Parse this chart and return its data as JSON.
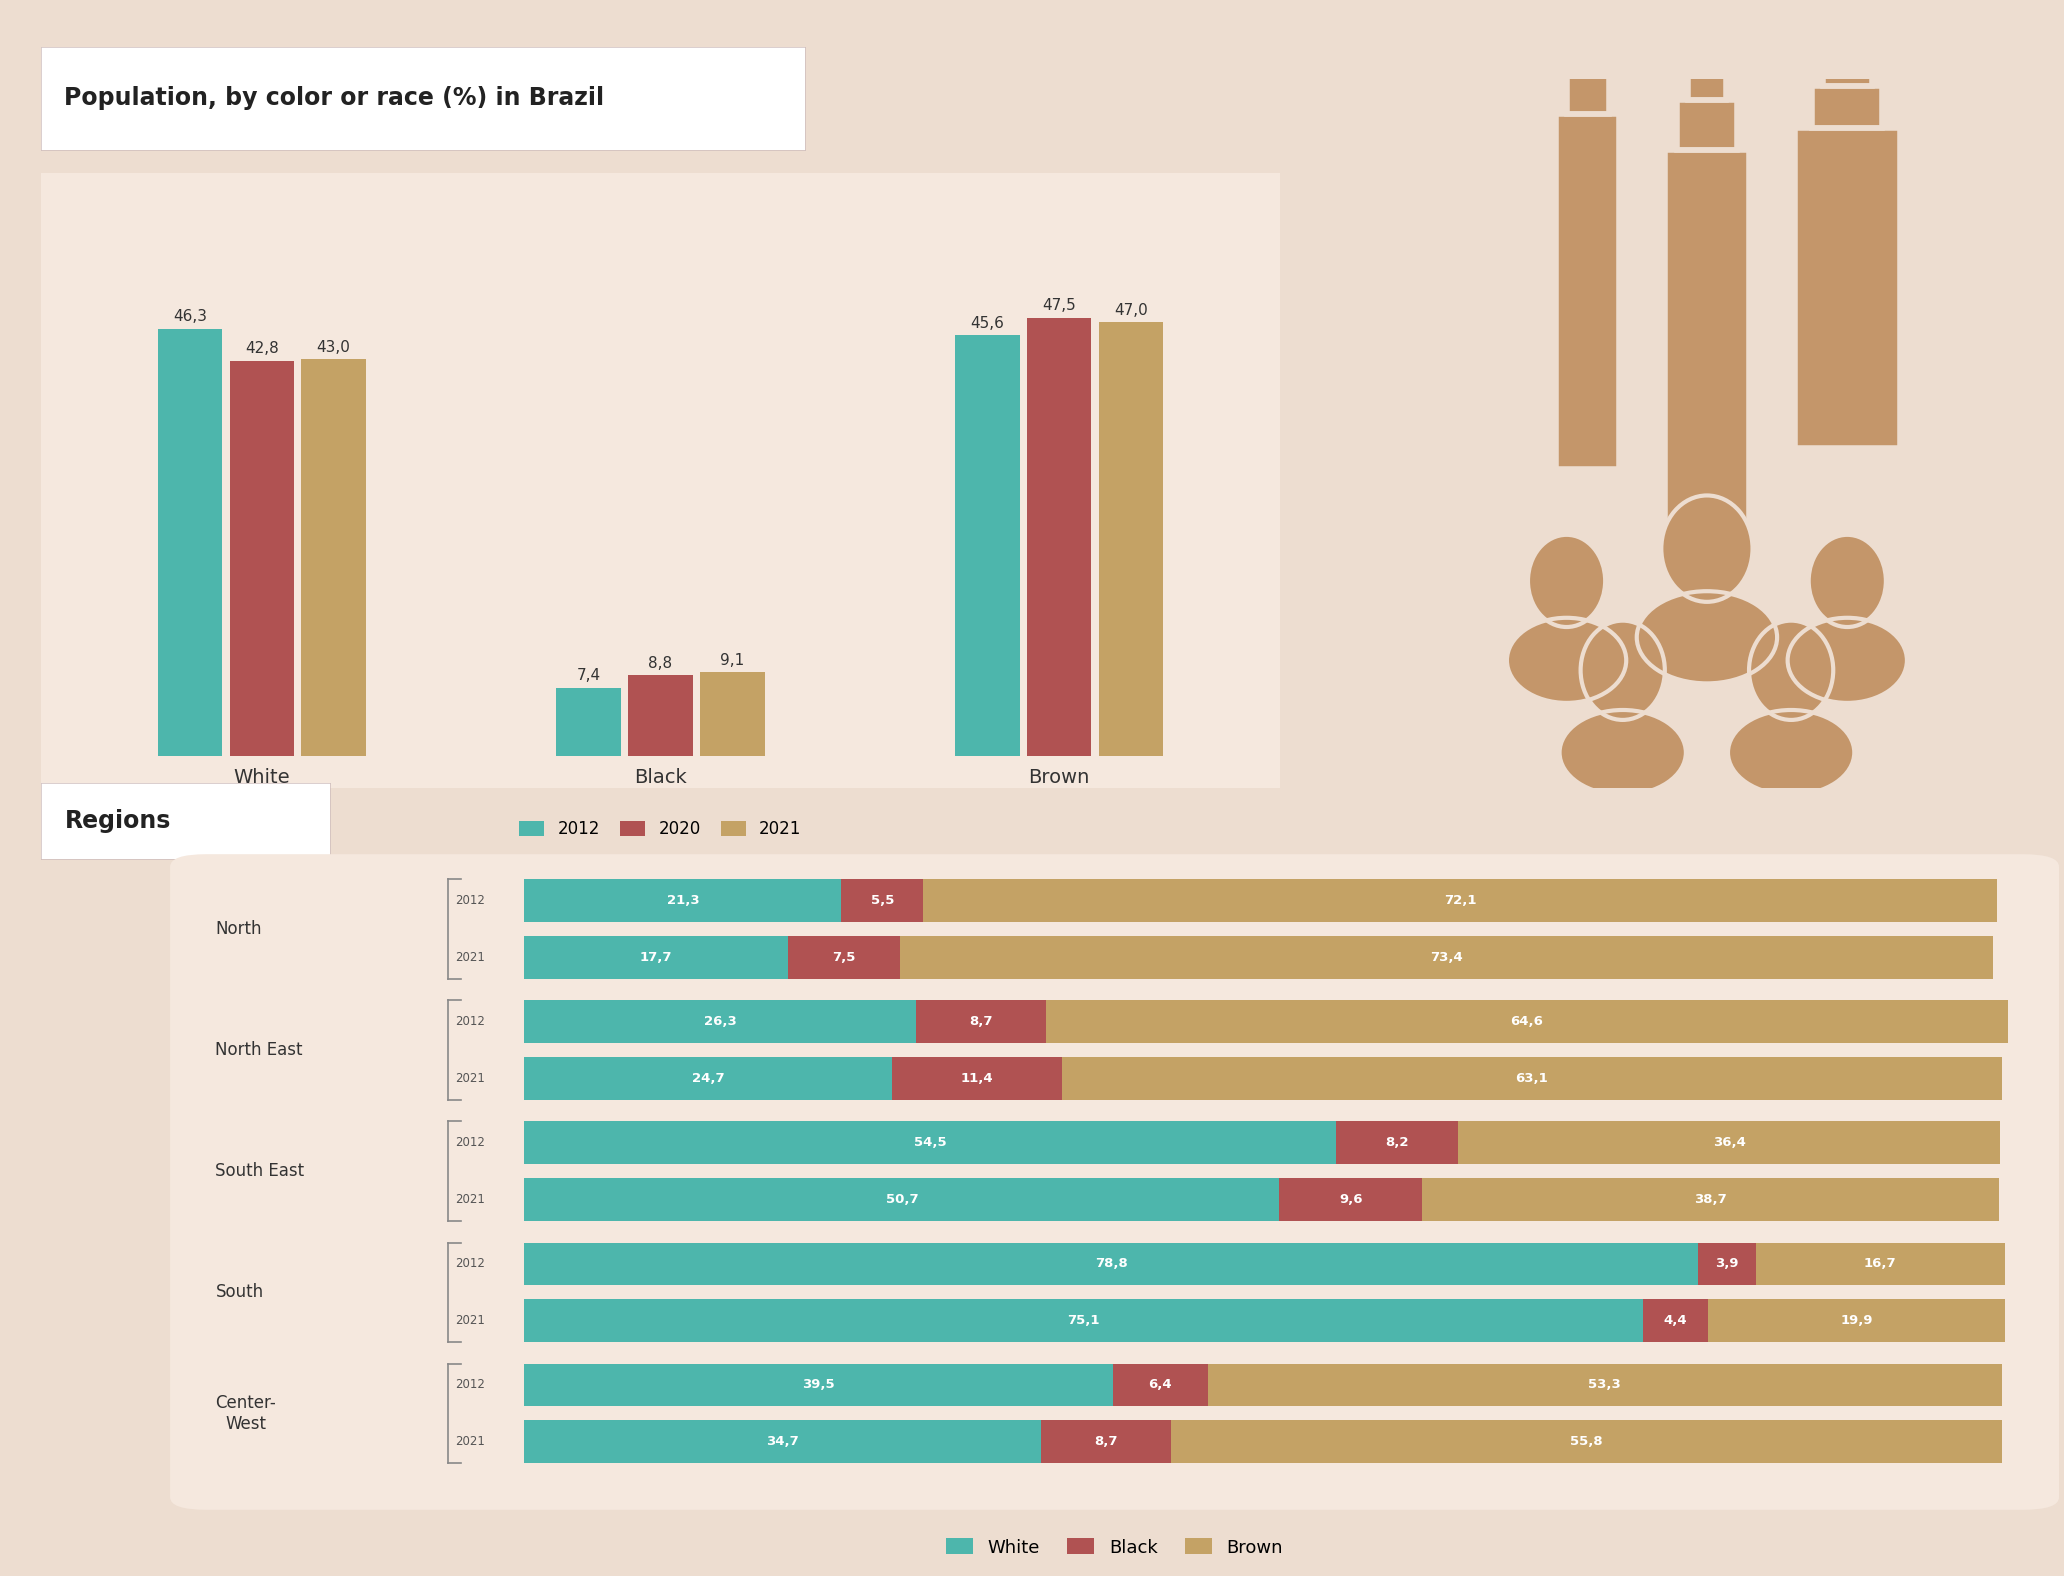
{
  "title": "Population, by color or race (%) in Brazil",
  "bg_color": "#edddd0",
  "white_color": "#4db6ac",
  "black_color": "#b05252",
  "brown_color": "#c4a265",
  "panel_color": "#f5e8de",
  "icon_color": "#c4966a",
  "icon_outline": "#edddd0",
  "grouped_bar": {
    "categories": [
      "White",
      "Black",
      "Brown"
    ],
    "years": [
      "2012",
      "2020",
      "2021"
    ],
    "year_colors": [
      "#4db6ac",
      "#b05252",
      "#c4a265"
    ],
    "values": {
      "White": [
        46.3,
        42.8,
        43.0
      ],
      "Black": [
        7.4,
        8.8,
        9.1
      ],
      "Brown": [
        45.6,
        47.5,
        47.0
      ]
    }
  },
  "regions_label": "Regions",
  "regions": [
    {
      "name": "North",
      "rows": [
        {
          "year": "2012",
          "white": 21.3,
          "black": 5.5,
          "brown": 72.1
        },
        {
          "year": "2021",
          "white": 17.7,
          "black": 7.5,
          "brown": 73.4
        }
      ]
    },
    {
      "name": "North East",
      "rows": [
        {
          "year": "2012",
          "white": 26.3,
          "black": 8.7,
          "brown": 64.6
        },
        {
          "year": "2021",
          "white": 24.7,
          "black": 11.4,
          "brown": 63.1
        }
      ]
    },
    {
      "name": "South East",
      "rows": [
        {
          "year": "2012",
          "white": 54.5,
          "black": 8.2,
          "brown": 36.4
        },
        {
          "year": "2021",
          "white": 50.7,
          "black": 9.6,
          "brown": 38.7
        }
      ]
    },
    {
      "name": "South",
      "rows": [
        {
          "year": "2012",
          "white": 78.8,
          "black": 3.9,
          "brown": 16.7
        },
        {
          "year": "2021",
          "white": 75.1,
          "black": 4.4,
          "brown": 19.9
        }
      ]
    },
    {
      "name": "Center-\nWest",
      "rows": [
        {
          "year": "2012",
          "white": 39.5,
          "black": 6.4,
          "brown": 53.3
        },
        {
          "year": "2021",
          "white": 34.7,
          "black": 8.7,
          "brown": 55.8
        }
      ]
    }
  ],
  "legend_labels": [
    "White",
    "Black",
    "Brown"
  ]
}
